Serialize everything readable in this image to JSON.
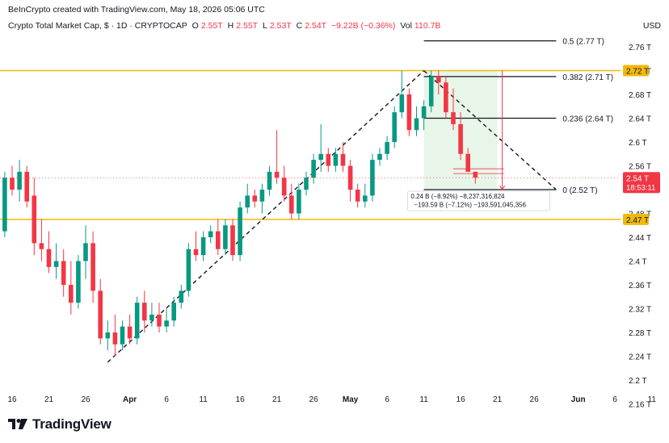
{
  "header": {
    "credit": "BeInCrypto created with TradingView.com, May 18, 2026 05:06 UTC",
    "symbol": "Crypto Total Market Cap, $ · 1D · CRYPTOCAP",
    "o_label": "O",
    "o_value": "2.55T",
    "h_label": "H",
    "h_value": "2.55T",
    "l_label": "L",
    "l_value": "2.53T",
    "c_label": "C",
    "c_value": "2.54T",
    "change": "−9.22B (−0.36%)",
    "vol_label": "Vol",
    "vol_value": "110.7B",
    "currency": "USD"
  },
  "branding": {
    "logo_text": "TradingView",
    "logo_icon": "tradingview-logo-icon"
  },
  "colors": {
    "up": "#089981",
    "down": "#f23645",
    "level": "#f0b90b",
    "fib": "#131722",
    "zone": "#e8f5e9",
    "axis_text": "#131722"
  },
  "chart_data": {
    "type": "candlestick",
    "y_axis": {
      "ticks": [
        2.16,
        2.2,
        2.24,
        2.28,
        2.32,
        2.36,
        2.4,
        2.44,
        2.48,
        2.52,
        2.56,
        2.6,
        2.64,
        2.68,
        2.72,
        2.76
      ],
      "tick_labels": [
        "2.16 T",
        "2.2 T",
        "2.24 T",
        "2.28 T",
        "2.32 T",
        "2.36 T",
        "2.4 T",
        "2.44 T",
        "2.48 T",
        "2.52 T",
        "2.56 T",
        "2.6 T",
        "2.64 T",
        "2.68 T",
        "2.72 T",
        "2.76 T"
      ],
      "unit": "T (trillion USD)"
    },
    "x_axis": {
      "tick_dates": [
        "2026-03-16",
        "2026-03-21",
        "2026-03-26",
        "2026-04-01",
        "2026-04-06",
        "2026-04-11",
        "2026-04-16",
        "2026-04-21",
        "2026-04-26",
        "2026-05-01",
        "2026-05-06",
        "2026-05-11",
        "2026-05-16",
        "2026-05-21",
        "2026-05-26",
        "2026-06-01",
        "2026-06-06",
        "2026-06-11"
      ],
      "tick_labels": [
        "16",
        "21",
        "26",
        "Apr",
        "6",
        "11",
        "16",
        "21",
        "26",
        "May",
        "6",
        "11",
        "16",
        "21",
        "26",
        "Jun",
        "6",
        "11"
      ]
    },
    "candles": [
      {
        "date": "2026-03-14",
        "o": 2.47,
        "h": 2.52,
        "l": 2.43,
        "c": 2.44
      },
      {
        "date": "2026-03-15",
        "o": 2.45,
        "h": 2.55,
        "l": 2.44,
        "c": 2.54
      },
      {
        "date": "2026-03-16",
        "o": 2.54,
        "h": 2.56,
        "l": 2.51,
        "c": 2.52
      },
      {
        "date": "2026-03-17",
        "o": 2.52,
        "h": 2.57,
        "l": 2.5,
        "c": 2.55
      },
      {
        "date": "2026-03-18",
        "o": 2.55,
        "h": 2.56,
        "l": 2.49,
        "c": 2.5
      },
      {
        "date": "2026-03-19",
        "o": 2.51,
        "h": 2.54,
        "l": 2.41,
        "c": 2.43
      },
      {
        "date": "2026-03-20",
        "o": 2.43,
        "h": 2.47,
        "l": 2.4,
        "c": 2.42
      },
      {
        "date": "2026-03-21",
        "o": 2.42,
        "h": 2.45,
        "l": 2.38,
        "c": 2.39
      },
      {
        "date": "2026-03-22",
        "o": 2.39,
        "h": 2.43,
        "l": 2.37,
        "c": 2.4
      },
      {
        "date": "2026-03-23",
        "o": 2.4,
        "h": 2.42,
        "l": 2.34,
        "c": 2.36
      },
      {
        "date": "2026-03-24",
        "o": 2.36,
        "h": 2.4,
        "l": 2.31,
        "c": 2.33
      },
      {
        "date": "2026-03-25",
        "o": 2.33,
        "h": 2.41,
        "l": 2.32,
        "c": 2.4
      },
      {
        "date": "2026-03-26",
        "o": 2.4,
        "h": 2.46,
        "l": 2.37,
        "c": 2.43
      },
      {
        "date": "2026-03-27",
        "o": 2.43,
        "h": 2.45,
        "l": 2.33,
        "c": 2.35
      },
      {
        "date": "2026-03-28",
        "o": 2.35,
        "h": 2.37,
        "l": 2.26,
        "c": 2.27
      },
      {
        "date": "2026-03-29",
        "o": 2.27,
        "h": 2.3,
        "l": 2.25,
        "c": 2.28
      },
      {
        "date": "2026-03-30",
        "o": 2.28,
        "h": 2.31,
        "l": 2.24,
        "c": 2.26
      },
      {
        "date": "2026-03-31",
        "o": 2.26,
        "h": 2.3,
        "l": 2.25,
        "c": 2.29
      },
      {
        "date": "2026-04-01",
        "o": 2.29,
        "h": 2.31,
        "l": 2.26,
        "c": 2.27
      },
      {
        "date": "2026-04-02",
        "o": 2.27,
        "h": 2.34,
        "l": 2.26,
        "c": 2.33
      },
      {
        "date": "2026-04-03",
        "o": 2.33,
        "h": 2.35,
        "l": 2.28,
        "c": 2.3
      },
      {
        "date": "2026-04-04",
        "o": 2.3,
        "h": 2.33,
        "l": 2.29,
        "c": 2.31
      },
      {
        "date": "2026-04-05",
        "o": 2.31,
        "h": 2.33,
        "l": 2.28,
        "c": 2.29
      },
      {
        "date": "2026-04-06",
        "o": 2.29,
        "h": 2.32,
        "l": 2.28,
        "c": 2.3
      },
      {
        "date": "2026-04-07",
        "o": 2.3,
        "h": 2.34,
        "l": 2.29,
        "c": 2.33
      },
      {
        "date": "2026-04-08",
        "o": 2.33,
        "h": 2.36,
        "l": 2.32,
        "c": 2.35
      },
      {
        "date": "2026-04-09",
        "o": 2.35,
        "h": 2.43,
        "l": 2.34,
        "c": 2.42
      },
      {
        "date": "2026-04-10",
        "o": 2.42,
        "h": 2.45,
        "l": 2.4,
        "c": 2.41
      },
      {
        "date": "2026-04-11",
        "o": 2.41,
        "h": 2.45,
        "l": 2.4,
        "c": 2.44
      },
      {
        "date": "2026-04-12",
        "o": 2.44,
        "h": 2.46,
        "l": 2.43,
        "c": 2.45
      },
      {
        "date": "2026-04-13",
        "o": 2.45,
        "h": 2.47,
        "l": 2.41,
        "c": 2.42
      },
      {
        "date": "2026-04-14",
        "o": 2.42,
        "h": 2.47,
        "l": 2.41,
        "c": 2.46
      },
      {
        "date": "2026-04-15",
        "o": 2.46,
        "h": 2.47,
        "l": 2.4,
        "c": 2.41
      },
      {
        "date": "2026-04-16",
        "o": 2.41,
        "h": 2.5,
        "l": 2.4,
        "c": 2.49
      },
      {
        "date": "2026-04-17",
        "o": 2.49,
        "h": 2.53,
        "l": 2.48,
        "c": 2.51
      },
      {
        "date": "2026-04-18",
        "o": 2.51,
        "h": 2.52,
        "l": 2.49,
        "c": 2.5
      },
      {
        "date": "2026-04-19",
        "o": 2.5,
        "h": 2.53,
        "l": 2.48,
        "c": 2.52
      },
      {
        "date": "2026-04-20",
        "o": 2.52,
        "h": 2.56,
        "l": 2.51,
        "c": 2.55
      },
      {
        "date": "2026-04-21",
        "o": 2.55,
        "h": 2.62,
        "l": 2.53,
        "c": 2.54
      },
      {
        "date": "2026-04-22",
        "o": 2.54,
        "h": 2.56,
        "l": 2.5,
        "c": 2.51
      },
      {
        "date": "2026-04-23",
        "o": 2.51,
        "h": 2.53,
        "l": 2.47,
        "c": 2.48
      },
      {
        "date": "2026-04-24",
        "o": 2.48,
        "h": 2.53,
        "l": 2.47,
        "c": 2.52
      },
      {
        "date": "2026-04-25",
        "o": 2.52,
        "h": 2.55,
        "l": 2.51,
        "c": 2.54
      },
      {
        "date": "2026-04-26",
        "o": 2.54,
        "h": 2.58,
        "l": 2.53,
        "c": 2.57
      },
      {
        "date": "2026-04-27",
        "o": 2.57,
        "h": 2.63,
        "l": 2.55,
        "c": 2.58
      },
      {
        "date": "2026-04-28",
        "o": 2.58,
        "h": 2.59,
        "l": 2.55,
        "c": 2.56
      },
      {
        "date": "2026-04-29",
        "o": 2.56,
        "h": 2.59,
        "l": 2.55,
        "c": 2.58
      },
      {
        "date": "2026-04-30",
        "o": 2.58,
        "h": 2.6,
        "l": 2.55,
        "c": 2.56
      },
      {
        "date": "2026-05-01",
        "o": 2.56,
        "h": 2.57,
        "l": 2.5,
        "c": 2.52
      },
      {
        "date": "2026-05-02",
        "o": 2.52,
        "h": 2.53,
        "l": 2.49,
        "c": 2.5
      },
      {
        "date": "2026-05-03",
        "o": 2.5,
        "h": 2.53,
        "l": 2.49,
        "c": 2.51
      },
      {
        "date": "2026-05-04",
        "o": 2.51,
        "h": 2.58,
        "l": 2.5,
        "c": 2.57
      },
      {
        "date": "2026-05-05",
        "o": 2.57,
        "h": 2.59,
        "l": 2.56,
        "c": 2.58
      },
      {
        "date": "2026-05-06",
        "o": 2.58,
        "h": 2.61,
        "l": 2.57,
        "c": 2.6
      },
      {
        "date": "2026-05-07",
        "o": 2.6,
        "h": 2.66,
        "l": 2.59,
        "c": 2.65
      },
      {
        "date": "2026-05-08",
        "o": 2.65,
        "h": 2.72,
        "l": 2.64,
        "c": 2.68
      },
      {
        "date": "2026-05-09",
        "o": 2.68,
        "h": 2.69,
        "l": 2.61,
        "c": 2.62
      },
      {
        "date": "2026-05-10",
        "o": 2.62,
        "h": 2.66,
        "l": 2.61,
        "c": 2.64
      },
      {
        "date": "2026-05-11",
        "o": 2.64,
        "h": 2.67,
        "l": 2.62,
        "c": 2.66
      },
      {
        "date": "2026-05-12",
        "o": 2.66,
        "h": 2.72,
        "l": 2.65,
        "c": 2.71
      },
      {
        "date": "2026-05-13",
        "o": 2.71,
        "h": 2.72,
        "l": 2.68,
        "c": 2.7
      },
      {
        "date": "2026-05-14",
        "o": 2.7,
        "h": 2.71,
        "l": 2.64,
        "c": 2.65
      },
      {
        "date": "2026-05-15",
        "o": 2.65,
        "h": 2.69,
        "l": 2.62,
        "c": 2.63
      },
      {
        "date": "2026-05-16",
        "o": 2.63,
        "h": 2.65,
        "l": 2.57,
        "c": 2.58
      },
      {
        "date": "2026-05-17",
        "o": 2.58,
        "h": 2.59,
        "l": 2.55,
        "c": 2.55
      },
      {
        "date": "2026-05-18",
        "o": 2.55,
        "h": 2.55,
        "l": 2.53,
        "c": 2.54
      }
    ],
    "levels": [
      {
        "name": "resistance",
        "value": 2.72,
        "label": "2.72 T"
      },
      {
        "name": "support",
        "value": 2.47,
        "label": "2.47 T"
      }
    ],
    "fib": {
      "start_date": "2026-05-11",
      "end_date": "2026-05-29",
      "levels": [
        {
          "ratio": "0.5",
          "value": 2.77,
          "label": "0.5 (2.77 T)"
        },
        {
          "ratio": "0.382",
          "value": 2.71,
          "label": "0.382 (2.71 T)"
        },
        {
          "ratio": "0.236",
          "value": 2.64,
          "label": "0.236 (2.64 T)"
        },
        {
          "ratio": "0",
          "value": 2.52,
          "label": "0 (2.52 T)"
        }
      ]
    },
    "trendlines": [
      {
        "name": "uptrend",
        "from": {
          "date": "2026-03-29",
          "value": 2.23
        },
        "to": {
          "date": "2026-05-11",
          "value": 2.72
        }
      },
      {
        "name": "downtrend",
        "from": {
          "date": "2026-05-11",
          "value": 2.72
        },
        "to": {
          "date": "2026-05-29",
          "value": 2.52
        }
      }
    ],
    "measure": {
      "from_date": "2026-05-11",
      "to_date": "2026-05-21",
      "top": 2.72,
      "bottom": 2.52,
      "line1": "0.24 B (−8.92%) −8,237,316,824",
      "line2": "−193.59 B (−7.12%) −193,591,045,356"
    },
    "last_price": {
      "value": 2.54,
      "label": "2.54 T",
      "countdown": "18:53:11"
    }
  }
}
